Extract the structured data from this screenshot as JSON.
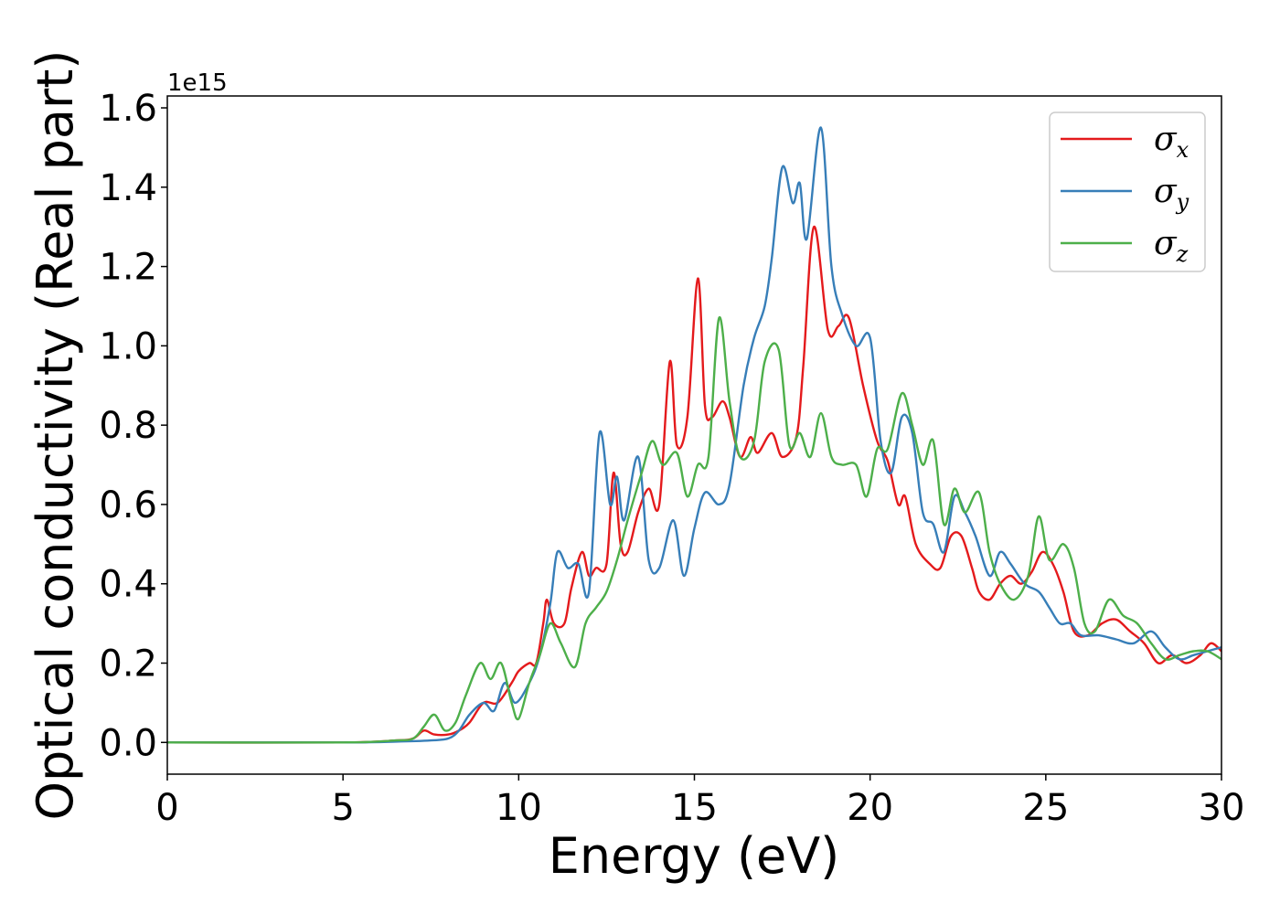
{
  "chart_data": {
    "type": "line",
    "xlabel": "Energy (eV)",
    "ylabel": "Optical conductivity (Real part)",
    "y_offset_label": "1e15",
    "xlim": [
      0,
      30
    ],
    "ylim": [
      -0.08,
      1.63
    ],
    "x_ticks": [
      0,
      5,
      10,
      15,
      20,
      25,
      30
    ],
    "x_tick_labels": [
      "0",
      "5",
      "10",
      "15",
      "20",
      "25",
      "30"
    ],
    "y_ticks": [
      0.0,
      0.2,
      0.4,
      0.6,
      0.8,
      1.0,
      1.2,
      1.4,
      1.6
    ],
    "y_tick_labels": [
      "0.0",
      "0.2",
      "0.4",
      "0.6",
      "0.8",
      "1.0",
      "1.2",
      "1.4",
      "1.6"
    ],
    "grid": false,
    "legend_position": "top-right",
    "series": [
      {
        "name": "σx",
        "base": "σ",
        "sub": "x",
        "color": "#e41a1c",
        "points": [
          [
            0,
            0
          ],
          [
            5,
            0
          ],
          [
            6.5,
            0.005
          ],
          [
            7.0,
            0.01
          ],
          [
            7.3,
            0.03
          ],
          [
            7.6,
            0.02
          ],
          [
            8.0,
            0.02
          ],
          [
            8.3,
            0.03
          ],
          [
            8.6,
            0.05
          ],
          [
            9.0,
            0.1
          ],
          [
            9.4,
            0.1
          ],
          [
            9.8,
            0.15
          ],
          [
            10.0,
            0.18
          ],
          [
            10.3,
            0.2
          ],
          [
            10.5,
            0.2
          ],
          [
            10.7,
            0.3
          ],
          [
            10.8,
            0.36
          ],
          [
            11.0,
            0.3
          ],
          [
            11.3,
            0.3
          ],
          [
            11.5,
            0.39
          ],
          [
            11.8,
            0.48
          ],
          [
            12.0,
            0.42
          ],
          [
            12.2,
            0.44
          ],
          [
            12.5,
            0.45
          ],
          [
            12.7,
            0.68
          ],
          [
            12.9,
            0.5
          ],
          [
            13.1,
            0.48
          ],
          [
            13.4,
            0.58
          ],
          [
            13.7,
            0.64
          ],
          [
            14.0,
            0.6
          ],
          [
            14.3,
            0.96
          ],
          [
            14.5,
            0.75
          ],
          [
            14.8,
            0.82
          ],
          [
            15.1,
            1.17
          ],
          [
            15.3,
            0.85
          ],
          [
            15.5,
            0.82
          ],
          [
            15.8,
            0.86
          ],
          [
            16.0,
            0.82
          ],
          [
            16.3,
            0.72
          ],
          [
            16.6,
            0.77
          ],
          [
            16.8,
            0.73
          ],
          [
            17.2,
            0.78
          ],
          [
            17.5,
            0.72
          ],
          [
            17.9,
            0.77
          ],
          [
            18.1,
            0.95
          ],
          [
            18.4,
            1.3
          ],
          [
            18.8,
            1.04
          ],
          [
            19.1,
            1.05
          ],
          [
            19.4,
            1.07
          ],
          [
            19.8,
            0.9
          ],
          [
            20.2,
            0.76
          ],
          [
            20.5,
            0.71
          ],
          [
            20.8,
            0.6
          ],
          [
            21.0,
            0.62
          ],
          [
            21.3,
            0.5
          ],
          [
            21.7,
            0.45
          ],
          [
            22.0,
            0.44
          ],
          [
            22.3,
            0.52
          ],
          [
            22.6,
            0.52
          ],
          [
            22.9,
            0.44
          ],
          [
            23.1,
            0.38
          ],
          [
            23.4,
            0.36
          ],
          [
            23.7,
            0.4
          ],
          [
            24.0,
            0.42
          ],
          [
            24.3,
            0.4
          ],
          [
            24.6,
            0.43
          ],
          [
            24.9,
            0.48
          ],
          [
            25.2,
            0.45
          ],
          [
            25.5,
            0.38
          ],
          [
            25.8,
            0.28
          ],
          [
            26.2,
            0.27
          ],
          [
            26.6,
            0.3
          ],
          [
            27.0,
            0.31
          ],
          [
            27.4,
            0.28
          ],
          [
            27.8,
            0.25
          ],
          [
            28.2,
            0.2
          ],
          [
            28.6,
            0.22
          ],
          [
            29.0,
            0.2
          ],
          [
            29.4,
            0.22
          ],
          [
            29.7,
            0.25
          ],
          [
            30.0,
            0.23
          ]
        ]
      },
      {
        "name": "σy",
        "base": "σ",
        "sub": "y",
        "color": "#377eb8",
        "points": [
          [
            0,
            0
          ],
          [
            5,
            0
          ],
          [
            6.5,
            0.002
          ],
          [
            7.5,
            0.005
          ],
          [
            8.0,
            0.01
          ],
          [
            8.3,
            0.03
          ],
          [
            8.6,
            0.07
          ],
          [
            9.0,
            0.1
          ],
          [
            9.3,
            0.08
          ],
          [
            9.6,
            0.15
          ],
          [
            9.9,
            0.1
          ],
          [
            10.3,
            0.15
          ],
          [
            10.6,
            0.22
          ],
          [
            10.9,
            0.35
          ],
          [
            11.1,
            0.48
          ],
          [
            11.4,
            0.44
          ],
          [
            11.7,
            0.45
          ],
          [
            12.0,
            0.38
          ],
          [
            12.3,
            0.78
          ],
          [
            12.6,
            0.6
          ],
          [
            12.8,
            0.67
          ],
          [
            13.0,
            0.56
          ],
          [
            13.4,
            0.72
          ],
          [
            13.7,
            0.46
          ],
          [
            14.0,
            0.44
          ],
          [
            14.4,
            0.56
          ],
          [
            14.7,
            0.42
          ],
          [
            15.0,
            0.54
          ],
          [
            15.3,
            0.63
          ],
          [
            15.7,
            0.6
          ],
          [
            16.0,
            0.65
          ],
          [
            16.4,
            0.9
          ],
          [
            16.7,
            1.02
          ],
          [
            17.0,
            1.1
          ],
          [
            17.2,
            1.22
          ],
          [
            17.5,
            1.45
          ],
          [
            17.8,
            1.36
          ],
          [
            18.0,
            1.41
          ],
          [
            18.2,
            1.27
          ],
          [
            18.6,
            1.55
          ],
          [
            18.9,
            1.2
          ],
          [
            19.2,
            1.08
          ],
          [
            19.6,
            1.0
          ],
          [
            20.0,
            1.02
          ],
          [
            20.3,
            0.76
          ],
          [
            20.6,
            0.68
          ],
          [
            20.9,
            0.82
          ],
          [
            21.2,
            0.78
          ],
          [
            21.5,
            0.58
          ],
          [
            21.8,
            0.55
          ],
          [
            22.1,
            0.48
          ],
          [
            22.4,
            0.62
          ],
          [
            22.7,
            0.58
          ],
          [
            23.0,
            0.52
          ],
          [
            23.4,
            0.42
          ],
          [
            23.7,
            0.48
          ],
          [
            24.0,
            0.45
          ],
          [
            24.4,
            0.4
          ],
          [
            24.8,
            0.38
          ],
          [
            25.1,
            0.34
          ],
          [
            25.4,
            0.3
          ],
          [
            25.7,
            0.3
          ],
          [
            26.0,
            0.27
          ],
          [
            26.5,
            0.27
          ],
          [
            27.0,
            0.26
          ],
          [
            27.5,
            0.25
          ],
          [
            28.0,
            0.28
          ],
          [
            28.4,
            0.24
          ],
          [
            28.8,
            0.21
          ],
          [
            29.2,
            0.22
          ],
          [
            29.6,
            0.23
          ],
          [
            30.0,
            0.24
          ]
        ]
      },
      {
        "name": "σz",
        "base": "σ",
        "sub": "z",
        "color": "#4daf4a",
        "points": [
          [
            0,
            0
          ],
          [
            5,
            0
          ],
          [
            6.5,
            0.005
          ],
          [
            7.0,
            0.01
          ],
          [
            7.3,
            0.04
          ],
          [
            7.6,
            0.07
          ],
          [
            7.9,
            0.03
          ],
          [
            8.2,
            0.05
          ],
          [
            8.5,
            0.12
          ],
          [
            8.9,
            0.2
          ],
          [
            9.2,
            0.16
          ],
          [
            9.5,
            0.2
          ],
          [
            9.8,
            0.1
          ],
          [
            10.0,
            0.06
          ],
          [
            10.3,
            0.15
          ],
          [
            10.6,
            0.22
          ],
          [
            10.9,
            0.3
          ],
          [
            11.2,
            0.25
          ],
          [
            11.6,
            0.19
          ],
          [
            11.9,
            0.3
          ],
          [
            12.2,
            0.34
          ],
          [
            12.5,
            0.38
          ],
          [
            12.8,
            0.46
          ],
          [
            13.1,
            0.56
          ],
          [
            13.5,
            0.68
          ],
          [
            13.8,
            0.76
          ],
          [
            14.1,
            0.7
          ],
          [
            14.5,
            0.73
          ],
          [
            14.8,
            0.62
          ],
          [
            15.1,
            0.7
          ],
          [
            15.4,
            0.72
          ],
          [
            15.7,
            1.07
          ],
          [
            16.0,
            0.86
          ],
          [
            16.3,
            0.72
          ],
          [
            16.7,
            0.76
          ],
          [
            17.0,
            0.96
          ],
          [
            17.4,
            0.99
          ],
          [
            17.7,
            0.75
          ],
          [
            18.0,
            0.78
          ],
          [
            18.3,
            0.72
          ],
          [
            18.6,
            0.83
          ],
          [
            18.9,
            0.72
          ],
          [
            19.2,
            0.7
          ],
          [
            19.6,
            0.7
          ],
          [
            19.9,
            0.62
          ],
          [
            20.2,
            0.74
          ],
          [
            20.5,
            0.74
          ],
          [
            20.9,
            0.88
          ],
          [
            21.2,
            0.8
          ],
          [
            21.5,
            0.7
          ],
          [
            21.8,
            0.76
          ],
          [
            22.1,
            0.55
          ],
          [
            22.4,
            0.64
          ],
          [
            22.7,
            0.58
          ],
          [
            23.1,
            0.63
          ],
          [
            23.4,
            0.48
          ],
          [
            23.7,
            0.4
          ],
          [
            24.1,
            0.36
          ],
          [
            24.5,
            0.42
          ],
          [
            24.8,
            0.57
          ],
          [
            25.1,
            0.46
          ],
          [
            25.5,
            0.5
          ],
          [
            25.8,
            0.44
          ],
          [
            26.1,
            0.3
          ],
          [
            26.4,
            0.28
          ],
          [
            26.8,
            0.36
          ],
          [
            27.2,
            0.32
          ],
          [
            27.6,
            0.3
          ],
          [
            28.0,
            0.25
          ],
          [
            28.4,
            0.21
          ],
          [
            28.8,
            0.22
          ],
          [
            29.2,
            0.23
          ],
          [
            29.6,
            0.23
          ],
          [
            30.0,
            0.21
          ]
        ]
      }
    ]
  }
}
